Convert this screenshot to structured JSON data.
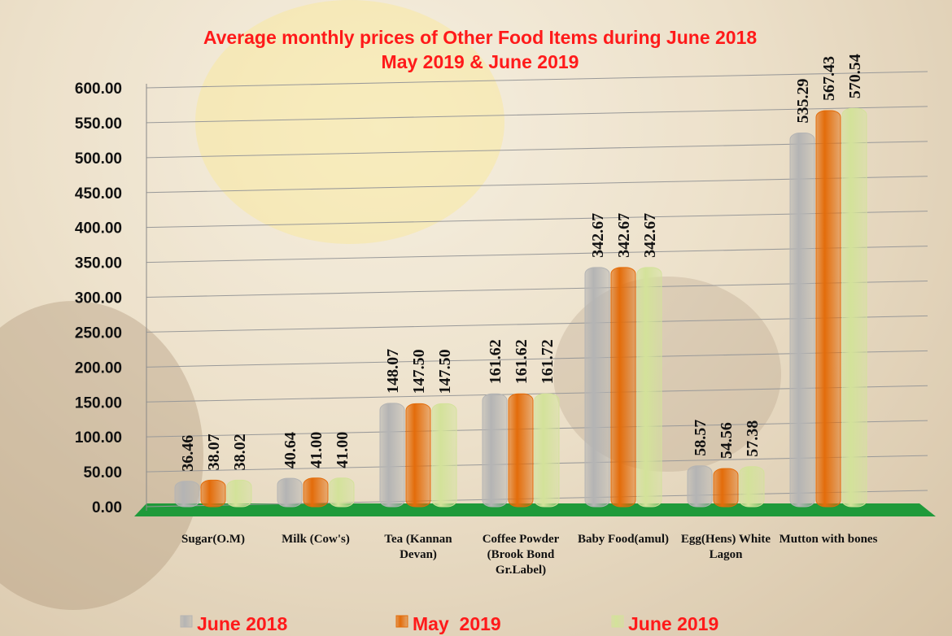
{
  "chart_data": {
    "type": "bar",
    "title": [
      "Average monthly prices of Other Food Items during June 2018",
      "May  2019 & June  2019"
    ],
    "categories": [
      "Sugar(O.M)",
      "Milk (Cow's)",
      "Tea (Kannan Devan)",
      "Coffee Powder (Brook Bond Gr.Label)",
      "Baby Food(amul)",
      "Egg(Hens) White Lagon",
      "Mutton with bones"
    ],
    "series": [
      {
        "name": "June 2018",
        "color": "#b4b4b4",
        "values": [
          36.46,
          40.64,
          148.07,
          161.62,
          342.67,
          58.57,
          535.29
        ],
        "value_labels": [
          "36.46",
          "40.64",
          "148.07",
          "161.62",
          "342.67",
          "58.57",
          "535.29"
        ]
      },
      {
        "name": "May  2019",
        "color": "#e36c0a",
        "values": [
          38.07,
          41,
          147.5,
          161.62,
          342.67,
          54.56,
          567.43
        ],
        "value_labels": [
          "38.07",
          "41.00",
          "147.50",
          "161.62",
          "342.67",
          "54.56",
          "567.43"
        ]
      },
      {
        "name": "June 2019",
        "color": "#d3e29a",
        "values": [
          38.02,
          41,
          147.5,
          161.72,
          342.67,
          57.38,
          570.54
        ],
        "value_labels": [
          "38.02",
          "41.00",
          "147.50",
          "161.72",
          "342.67",
          "57.38",
          "570.54"
        ]
      }
    ],
    "ylim": [
      0,
      600
    ],
    "yticks": [
      {
        "value": 0,
        "label": "0.00"
      },
      {
        "value": 50,
        "label": "50.00"
      },
      {
        "value": 100,
        "label": "100.00"
      },
      {
        "value": 150,
        "label": "150.00"
      },
      {
        "value": 200,
        "label": "200.00"
      },
      {
        "value": 250,
        "label": "250.00"
      },
      {
        "value": 300,
        "label": "300.00"
      },
      {
        "value": 350,
        "label": "350.00"
      },
      {
        "value": 400,
        "label": "400.00"
      },
      {
        "value": 450,
        "label": "450.00"
      },
      {
        "value": 500,
        "label": "500.00"
      },
      {
        "value": 550,
        "label": "550.00"
      },
      {
        "value": 600,
        "label": "600.00"
      }
    ],
    "grid": true,
    "legend": "bottom"
  }
}
